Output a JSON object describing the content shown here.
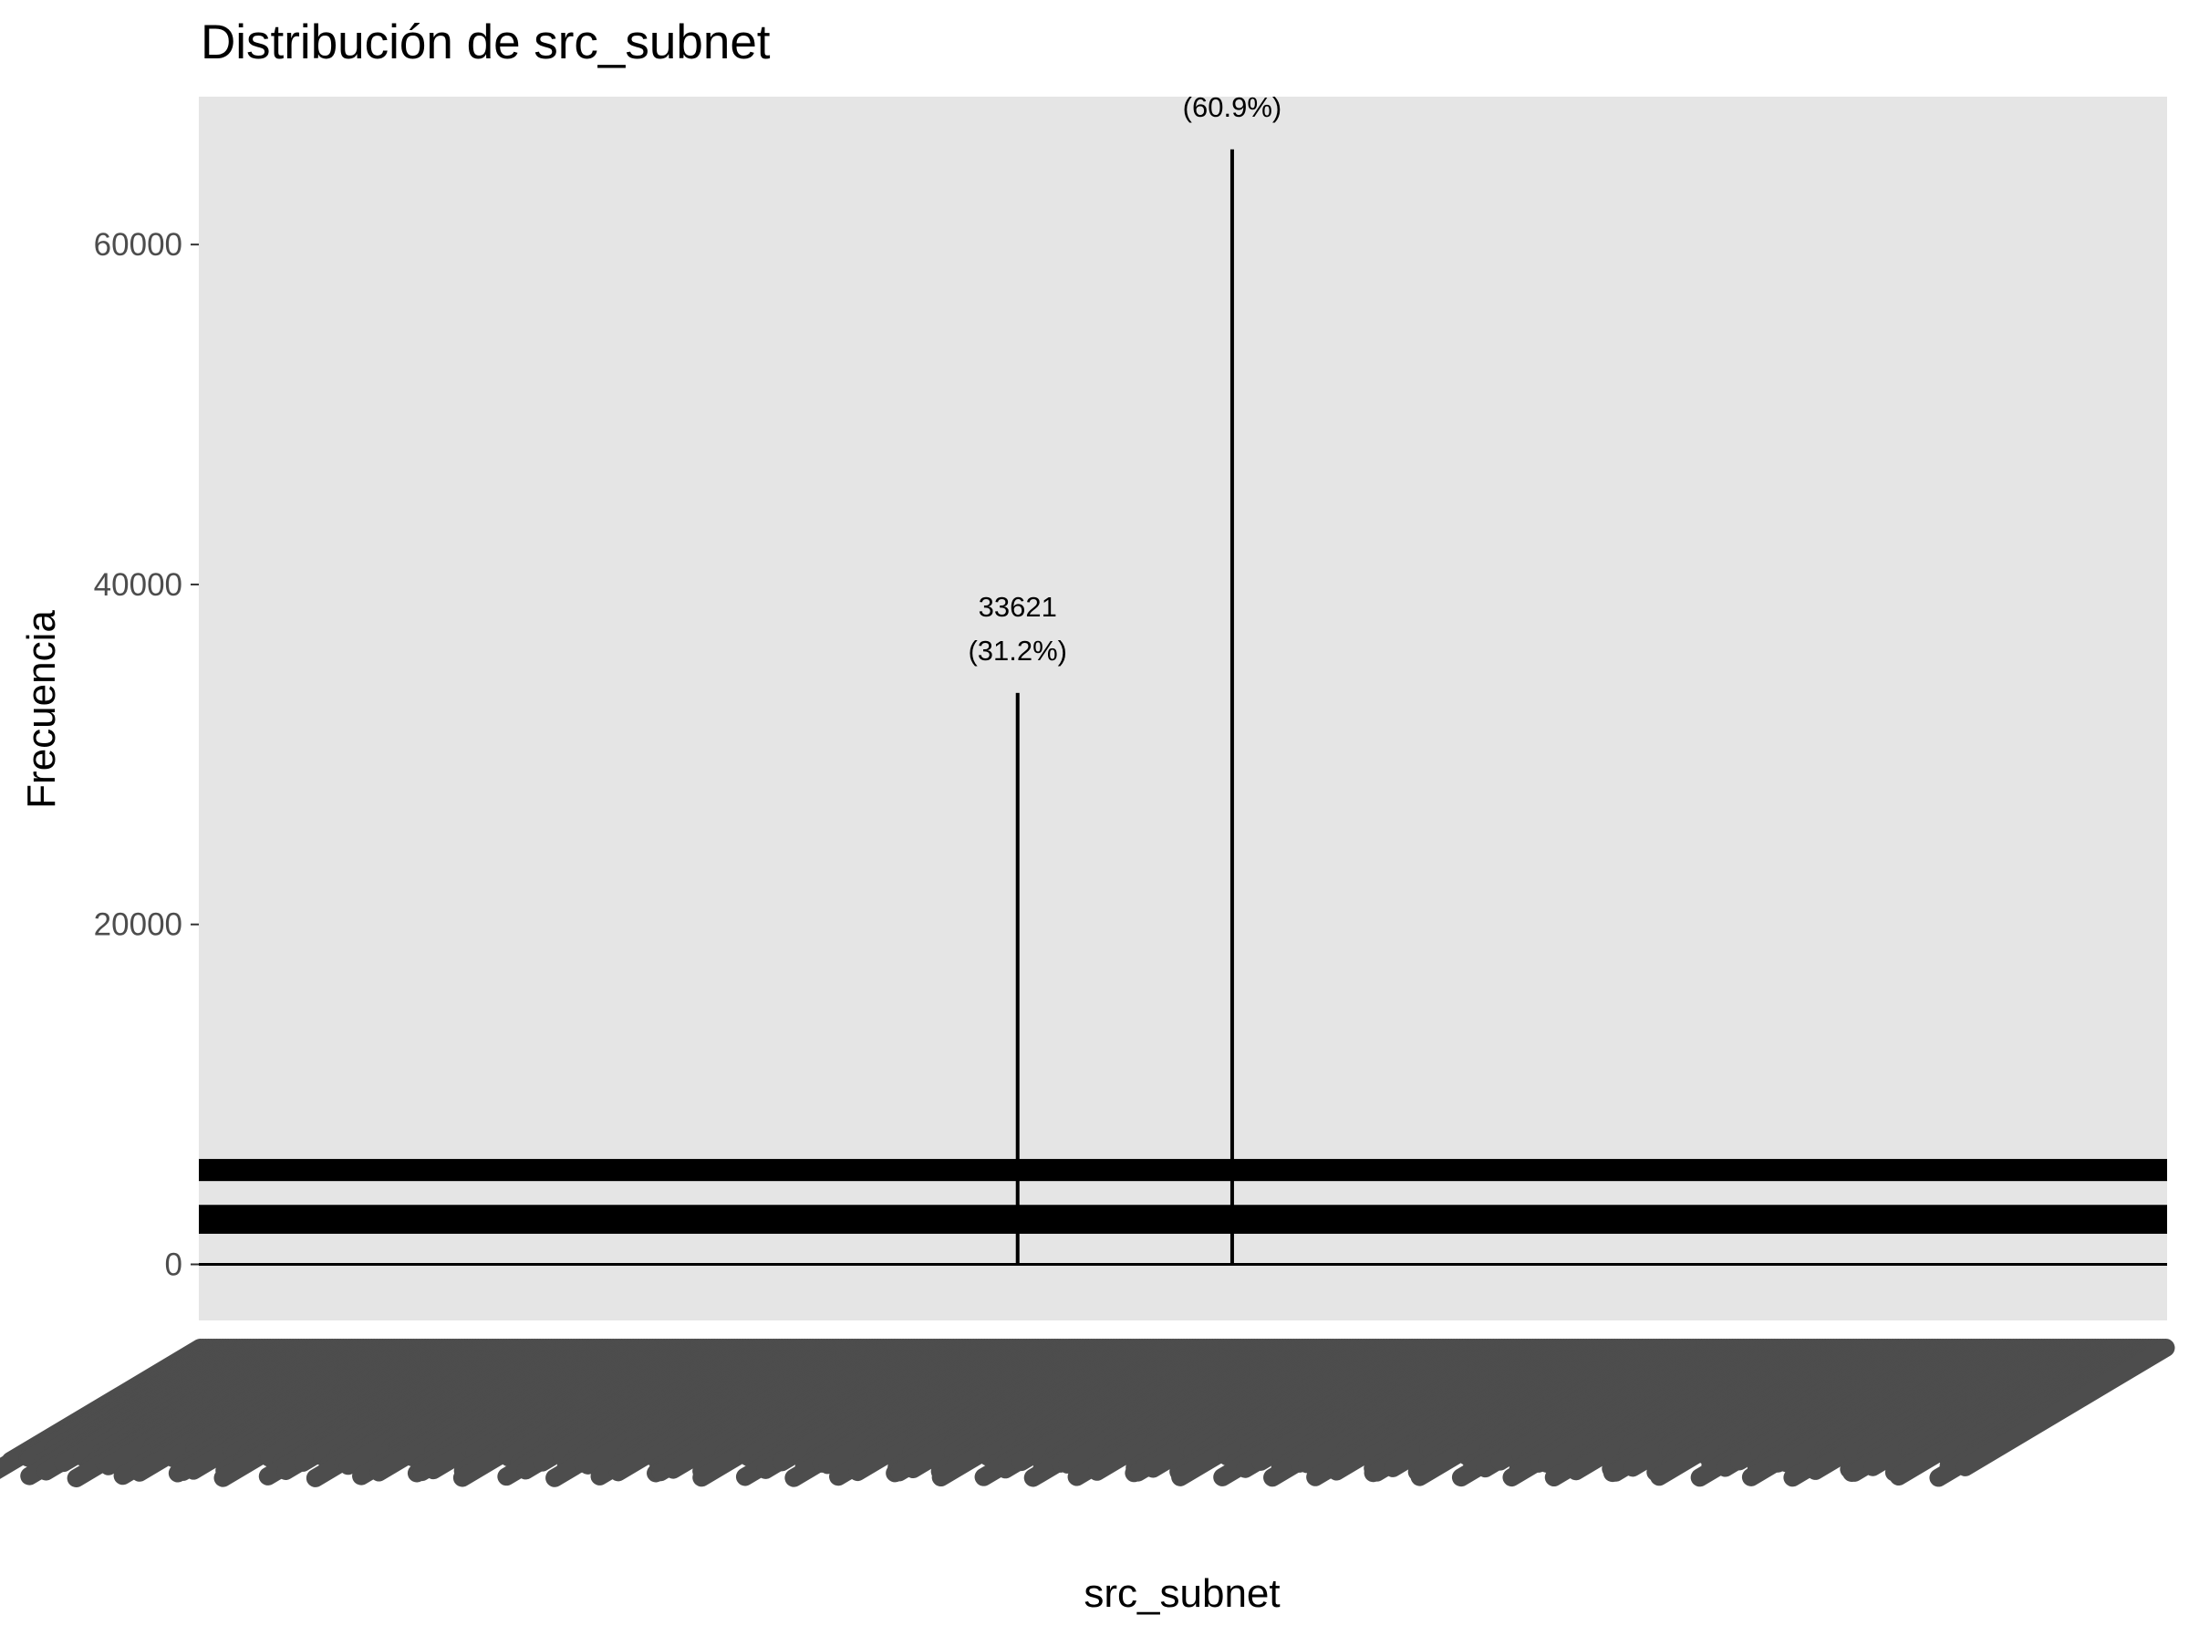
{
  "chart_data": {
    "type": "bar",
    "title": "Distribución de src_subnet",
    "xlabel": "src_subnet",
    "ylabel": "Frecuencia",
    "ylim": [
      -3300,
      68700
    ],
    "yticks": [
      0,
      20000,
      40000,
      60000
    ],
    "ytick_labels": [
      "0",
      "20000",
      "40000",
      "60000"
    ],
    "grid": false,
    "legend": "none",
    "bar_color": "#000000",
    "panel_color": "#e5e5e5",
    "tick_label_color": "#4d4d4d",
    "category_count": 700,
    "categories": [],
    "highlighted_bars": [
      {
        "position": 0.416,
        "value": 33621,
        "count_label": "33621",
        "pct_label": "(31.2%)"
      },
      {
        "position": 0.525,
        "value": 65600,
        "count_label": "",
        "pct_label": "(60.9%)"
      }
    ],
    "baseline_band": {
      "y_low": 1800,
      "y_high": 3500
    },
    "upper_band": {
      "y_low": 4900,
      "y_high": 6200
    }
  }
}
